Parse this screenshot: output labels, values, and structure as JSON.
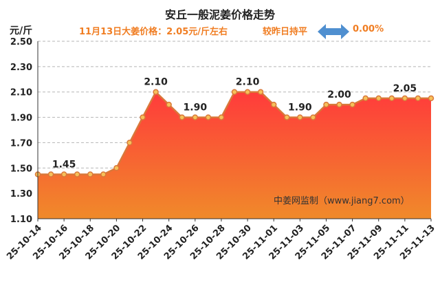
{
  "header": {
    "title": "安丘一般泥姜价格走势",
    "price_text": "11月13日大姜价格：2.05元/斤左右",
    "compare_text": "较昨日持平",
    "change_text": "0.00%"
  },
  "icons": {
    "compare": "double-arrow-icon"
  },
  "colors": {
    "accent": "#f07d22",
    "line": "#d9783a",
    "marker_fill": "#f6c15a",
    "area_top": "#ff3b3b",
    "area_bottom": "#f08a2a",
    "arrow": "#4f8fd0"
  },
  "watermark": "中姜网监制（www.jiang7.com）",
  "chart_data": {
    "type": "area",
    "title": "安丘一般泥姜价格走势",
    "ylabel": "元/斤",
    "xlabel": "",
    "ylim": [
      1.1,
      2.5
    ],
    "yticks": [
      1.1,
      1.3,
      1.5,
      1.7,
      1.9,
      2.1,
      2.3,
      2.5
    ],
    "ytick_labels": [
      "1.10",
      "1.30",
      "1.50",
      "1.70",
      "1.90",
      "2.10",
      "2.30",
      "2.50"
    ],
    "grid": true,
    "xtick_labels": [
      "25-10-14",
      "25-10-16",
      "25-10-18",
      "25-10-20",
      "25-10-22",
      "25-10-24",
      "25-10-26",
      "25-10-28",
      "25-10-30",
      "25-11-01",
      "25-11-03",
      "25-11-05",
      "25-11-07",
      "25-11-09",
      "25-11-11",
      "25-11-13"
    ],
    "x": [
      "25-10-14",
      "25-10-15",
      "25-10-16",
      "25-10-17",
      "25-10-18",
      "25-10-19",
      "25-10-20",
      "25-10-21",
      "25-10-22",
      "25-10-23",
      "25-10-24",
      "25-10-25",
      "25-10-26",
      "25-10-27",
      "25-10-28",
      "25-10-29",
      "25-10-30",
      "25-10-31",
      "25-11-01",
      "25-11-02",
      "25-11-03",
      "25-11-04",
      "25-11-05",
      "25-11-06",
      "25-11-07",
      "25-11-08",
      "25-11-09",
      "25-11-10",
      "25-11-11",
      "25-11-12",
      "25-11-13"
    ],
    "values": [
      1.45,
      1.45,
      1.45,
      1.45,
      1.45,
      1.45,
      1.5,
      1.7,
      1.9,
      2.1,
      2.0,
      1.9,
      1.9,
      1.9,
      1.9,
      2.1,
      2.1,
      2.1,
      2.0,
      1.9,
      1.9,
      1.9,
      2.0,
      2.0,
      2.0,
      2.05,
      2.05,
      2.05,
      2.05,
      2.05,
      2.05
    ],
    "annotations": [
      {
        "index": 2,
        "text": "1.45"
      },
      {
        "index": 9,
        "text": "2.10"
      },
      {
        "index": 12,
        "text": "1.90"
      },
      {
        "index": 16,
        "text": "2.10"
      },
      {
        "index": 20,
        "text": "1.90"
      },
      {
        "index": 23,
        "text": "2.00"
      },
      {
        "index": 28,
        "text": "2.05"
      }
    ]
  }
}
